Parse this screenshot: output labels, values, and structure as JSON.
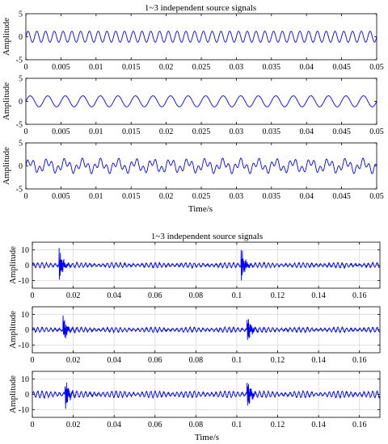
{
  "chart_data": [
    {
      "type": "line",
      "title": "1~3 independent source signals",
      "xlabel": "Time/s",
      "ylabel": "Amplitude",
      "xlim": [
        0,
        0.05
      ],
      "ylim": [
        -5,
        5
      ],
      "grid": false,
      "x_ticks": [
        0,
        0.005,
        0.01,
        0.015,
        0.02,
        0.025,
        0.03,
        0.035,
        0.04,
        0.045,
        0.05
      ],
      "x_tick_labels": [
        "0",
        "0.005",
        "0.01",
        "0.015",
        "0.02",
        "0.025",
        "0.03",
        "0.035",
        "0.04",
        "0.045",
        "0.05"
      ],
      "y_ticks": [
        -5,
        0,
        5
      ],
      "y_tick_labels": [
        "-5",
        "0",
        "5"
      ],
      "series_color": "#0000ff",
      "series": [
        {
          "frequency_hz": 800,
          "amplitude": 1.2
        },
        {
          "frequency_hz": 400,
          "amplitude": 1.2
        },
        {
          "components": [
            {
              "frequency_hz": 400,
              "amplitude": 0.9
            },
            {
              "frequency_hz": 1150,
              "amplitude": 0.8
            }
          ]
        }
      ]
    },
    {
      "type": "line",
      "title": "1~3 independent source signals",
      "xlabel": "Time/s",
      "ylabel": "Amplitude",
      "xlim": [
        0,
        0.17
      ],
      "ylim": [
        -15,
        15
      ],
      "grid": true,
      "x_ticks": [
        0,
        0.02,
        0.04,
        0.06,
        0.08,
        0.1,
        0.12,
        0.14,
        0.16
      ],
      "x_tick_labels": [
        "0",
        "0.02",
        "0.04",
        "0.06",
        "0.08",
        "0.1",
        "0.12",
        "0.14",
        "0.16"
      ],
      "y_ticks": [
        -10,
        0,
        10
      ],
      "y_tick_labels": [
        "-10",
        "0",
        "10"
      ],
      "series_color": "#0000ff",
      "series": [
        {
          "baseline_amplitude": 1.5,
          "impulses": [
            {
              "t": 0.013,
              "peak": 14
            },
            {
              "t": 0.102,
              "peak": 14
            }
          ]
        },
        {
          "baseline_amplitude": 1.5,
          "impulses": [
            {
              "t": 0.015,
              "peak": 12
            },
            {
              "t": 0.105,
              "peak": 12
            }
          ]
        },
        {
          "baseline_amplitude": 2,
          "impulses": [
            {
              "t": 0.016,
              "peak": 13
            },
            {
              "t": 0.105,
              "peak": 13
            }
          ]
        }
      ]
    }
  ]
}
